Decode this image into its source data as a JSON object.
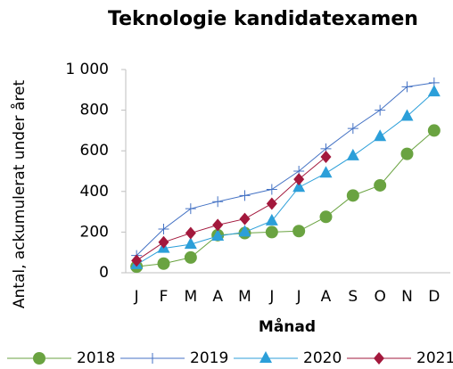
{
  "chart_data": {
    "type": "line",
    "title": "Teknologie kandidatexamen",
    "x_label": "Månad",
    "y_label": "Antal, ackumulerat under året",
    "categories": [
      "J",
      "F",
      "M",
      "A",
      "M",
      "J",
      "J",
      "A",
      "S",
      "O",
      "N",
      "D"
    ],
    "ylim": [
      0,
      1000
    ],
    "yticks": [
      0,
      200,
      400,
      600,
      800,
      {
        "value": 1000,
        "label": "1 000"
      }
    ],
    "grid": false,
    "legend": "bottom",
    "series": [
      {
        "name": "2018",
        "color": "#6aa341",
        "marker": "circle",
        "values": [
          30,
          45,
          75,
          185,
          195,
          200,
          205,
          275,
          380,
          430,
          585,
          700
        ]
      },
      {
        "name": "2019",
        "color": "#4472c4",
        "marker": "plus",
        "values": [
          85,
          215,
          315,
          350,
          380,
          410,
          500,
          610,
          710,
          800,
          915,
          935
        ]
      },
      {
        "name": "2020",
        "color": "#2c9fd9",
        "marker": "triangle",
        "values": [
          40,
          120,
          140,
          180,
          200,
          255,
          420,
          490,
          575,
          670,
          770,
          890
        ]
      },
      {
        "name": "2021",
        "color": "#a3183c",
        "marker": "diamond",
        "values": [
          60,
          150,
          195,
          235,
          265,
          340,
          460,
          570,
          null,
          null,
          null,
          null
        ]
      }
    ]
  }
}
